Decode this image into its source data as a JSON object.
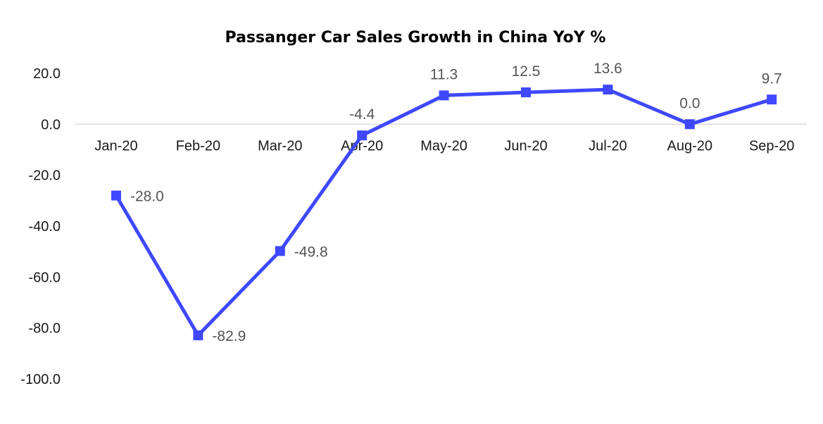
{
  "chart_data": {
    "type": "line",
    "title": "Passanger Car Sales Growth in China YoY %",
    "categories": [
      "Jan-20",
      "Feb-20",
      "Mar-20",
      "Apr-20",
      "May-20",
      "Jun-20",
      "Jul-20",
      "Aug-20",
      "Sep-20"
    ],
    "series": [
      {
        "values": [
          -28.0,
          -82.9,
          -49.8,
          -4.4,
          11.3,
          12.5,
          13.6,
          0.0,
          9.7
        ],
        "labels": [
          "-28.0",
          "-82.9",
          "-49.8",
          "-4.4",
          "11.3",
          "12.5",
          "13.6",
          "0.0",
          "9.7"
        ],
        "color": "#3f48ff",
        "marker": "square"
      }
    ],
    "yticks": [
      "20.0",
      "0.0",
      "-20.0",
      "-40.0",
      "-60.0",
      "-80.0",
      "-100.0"
    ],
    "ytick_values": [
      20,
      0,
      -20,
      -40,
      -60,
      -80,
      -100
    ],
    "ylim": [
      -100,
      20
    ],
    "grid": false,
    "legend": "none",
    "xaxis_at": 0,
    "axis_line_color": "#d9d9d9"
  }
}
